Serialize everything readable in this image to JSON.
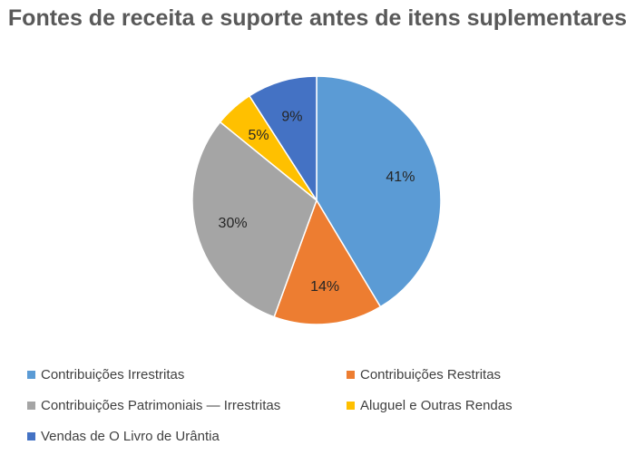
{
  "chart_data": {
    "type": "pie",
    "title": "Fontes de receita e suporte antes de itens suplementares",
    "slices": [
      {
        "name": "Contribuições Irrestritas",
        "value": 41,
        "label": "41%",
        "color": "#5B9BD5"
      },
      {
        "name": "Contribuições Restritas",
        "value": 14,
        "label": "14%",
        "color": "#ED7D31"
      },
      {
        "name": "Contribuições Patrimoniais — Irrestritas",
        "value": 30,
        "label": "30%",
        "color": "#A5A5A5"
      },
      {
        "name": "Aluguel e Outras Rendas",
        "value": 5,
        "label": "5%",
        "color": "#FFC000"
      },
      {
        "name": "Vendas de O Livro de Urântia",
        "value": 9,
        "label": "9%",
        "color": "#4472C4"
      }
    ],
    "legend_position": "bottom"
  }
}
